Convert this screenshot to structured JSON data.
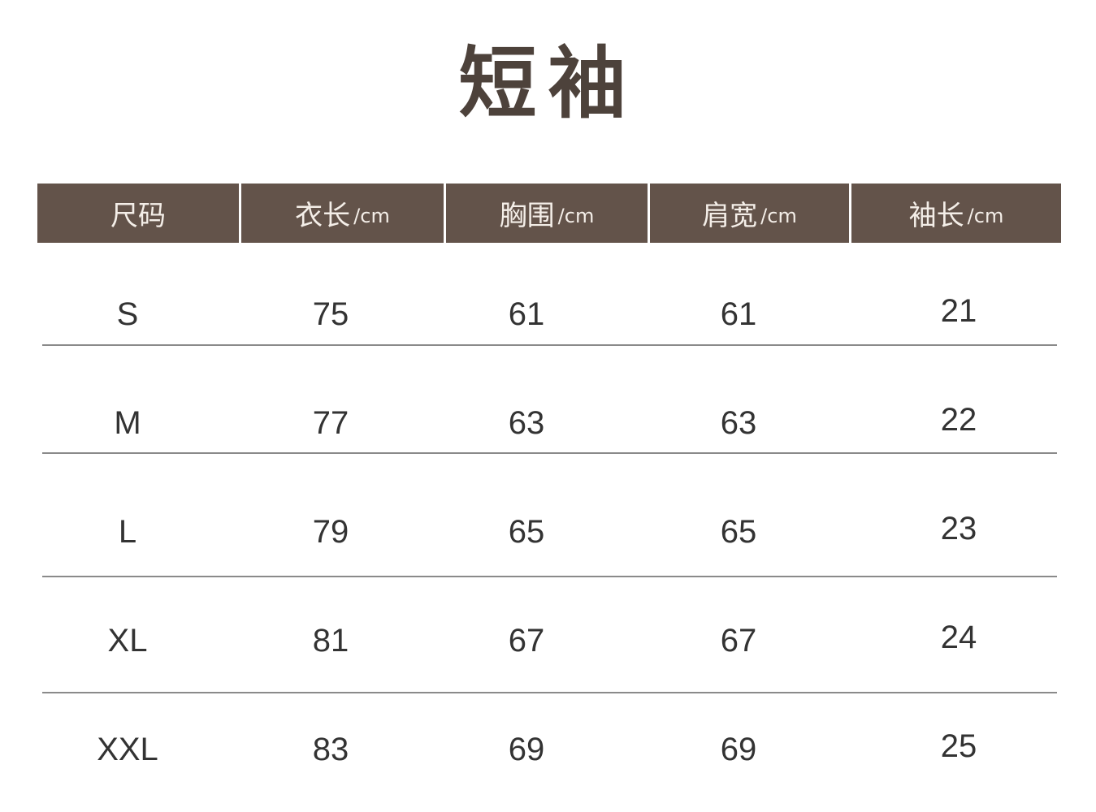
{
  "title": "短袖",
  "table": {
    "header_color": "#63534a",
    "headers": [
      {
        "label": "尺码",
        "unit": ""
      },
      {
        "label": "衣长",
        "unit": "/cm"
      },
      {
        "label": "胸围",
        "unit": "/cm"
      },
      {
        "label": "肩宽",
        "unit": "/cm"
      },
      {
        "label": "袖长",
        "unit": "/cm"
      }
    ],
    "rows": [
      [
        "S",
        "75",
        "61",
        "61",
        "21"
      ],
      [
        "M",
        "77",
        "63",
        "63",
        "22"
      ],
      [
        "L",
        "79",
        "65",
        "65",
        "23"
      ],
      [
        "XL",
        "81",
        "67",
        "67",
        "24"
      ],
      [
        "XXL",
        "83",
        "69",
        "69",
        "25"
      ]
    ]
  }
}
